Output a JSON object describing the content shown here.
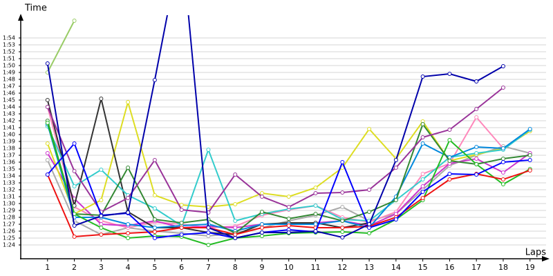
{
  "chart_data": {
    "type": "line",
    "y_label": "Time",
    "x_label": "Laps",
    "grid": true,
    "x": [
      1,
      2,
      3,
      4,
      5,
      6,
      7,
      8,
      9,
      10,
      11,
      12,
      13,
      14,
      15,
      16,
      17,
      18,
      19
    ],
    "xlim": [
      0,
      19.6
    ],
    "xticks": [
      1,
      2,
      3,
      4,
      5,
      6,
      7,
      8,
      9,
      10,
      11,
      12,
      13,
      14,
      15,
      16,
      17,
      18,
      19
    ],
    "ylim": [
      82,
      117
    ],
    "yticks": [
      {
        "value": 84,
        "label": "1:24"
      },
      {
        "value": 85,
        "label": "1:25"
      },
      {
        "value": 86,
        "label": "1:26"
      },
      {
        "value": 87,
        "label": "1:27"
      },
      {
        "value": 88,
        "label": "1:28"
      },
      {
        "value": 89,
        "label": "1:29"
      },
      {
        "value": 90,
        "label": "1:30"
      },
      {
        "value": 91,
        "label": "1:31"
      },
      {
        "value": 92,
        "label": "1:32"
      },
      {
        "value": 93,
        "label": "1:33"
      },
      {
        "value": 94,
        "label": "1:34"
      },
      {
        "value": 95,
        "label": "1:35"
      },
      {
        "value": 96,
        "label": "1:36"
      },
      {
        "value": 97,
        "label": "1:37"
      },
      {
        "value": 98,
        "label": "1:38"
      },
      {
        "value": 99,
        "label": "1:39"
      },
      {
        "value": 100,
        "label": "1:40"
      },
      {
        "value": 101,
        "label": "1:41"
      },
      {
        "value": 102,
        "label": "1:42"
      },
      {
        "value": 103,
        "label": "1:43"
      },
      {
        "value": 104,
        "label": "1:44"
      },
      {
        "value": 105,
        "label": "1:45"
      },
      {
        "value": 106,
        "label": "1:46"
      },
      {
        "value": 107,
        "label": "1:47"
      },
      {
        "value": 108,
        "label": "1:48"
      },
      {
        "value": 109,
        "label": "1:49"
      },
      {
        "value": 110,
        "label": "1:50"
      },
      {
        "value": 111,
        "label": "1:51"
      },
      {
        "value": 112,
        "label": "1:52"
      },
      {
        "value": 113,
        "label": "1:53"
      },
      {
        "value": 114,
        "label": "1:54"
      }
    ],
    "series": [
      {
        "color": "#99cc66",
        "values": [
          109,
          116.5,
          null,
          null,
          null,
          null,
          null,
          null,
          null,
          null,
          null,
          null,
          null,
          null,
          null,
          null,
          null,
          null,
          null
        ]
      },
      {
        "color": "#aaaaaa",
        "values": [
          96.3,
          87.5,
          85.5,
          86.5,
          86,
          85.7,
          85.3,
          85.7,
          86.5,
          87.5,
          88.3,
          89.5,
          87.5,
          88.5,
          92,
          95.5,
          97,
          98.3,
          97.3
        ]
      },
      {
        "color": "#ff88bb",
        "values": [
          104,
          89.5,
          87.5,
          86.5,
          87.3,
          87,
          86.5,
          86.7,
          88.3,
          89.1,
          89.7,
          88,
          87.3,
          88.8,
          94.3,
          95.8,
          102.5,
          98,
          100.5
        ]
      },
      {
        "color": "#cc33cc",
        "values": [
          97.3,
          90.7,
          87,
          86.8,
          87.5,
          86.5,
          86.7,
          86.5,
          87,
          87,
          87.2,
          87.5,
          86.8,
          88.5,
          92.5,
          95.8,
          96.5,
          94.5,
          97.3
        ]
      },
      {
        "color": "#dddd22",
        "values": [
          98.7,
          88.5,
          90.5,
          104.7,
          91.2,
          89.8,
          89.5,
          89.9,
          91.5,
          91,
          92.3,
          95.2,
          100.8,
          96.5,
          101.9,
          96.2,
          97.1,
          98,
          100.5
        ]
      },
      {
        "color": "#333333",
        "values": [
          105,
          89.7,
          105.2,
          88.8,
          86.5,
          86.5,
          85.8,
          85.5,
          87,
          87.2,
          87.2,
          86.5,
          87.2,
          null,
          null,
          null,
          null,
          null,
          null
        ]
      },
      {
        "color": "#33cccc",
        "values": [
          101.2,
          92.5,
          94.9,
          91.2,
          89.3,
          86.8,
          97.8,
          87.5,
          88.5,
          89.2,
          89.7,
          87.7,
          87.5,
          90.5,
          93.5,
          96.7,
          97.3,
          97.8,
          100.7
        ]
      },
      {
        "color": "#0088dd",
        "values": [
          101.5,
          88,
          88,
          87,
          86.5,
          86.8,
          87,
          86,
          87,
          87,
          87,
          87.5,
          86.5,
          91,
          98.7,
          96.7,
          98.2,
          98,
          100.8
        ]
      },
      {
        "color": "#338833",
        "values": [
          102,
          88.5,
          88.3,
          95.2,
          87.7,
          87.2,
          87.7,
          85.7,
          88.8,
          87.8,
          88.5,
          87.5,
          88.8,
          90.5,
          101.5,
          96.2,
          95.7,
          96.5,
          97
        ]
      },
      {
        "color": "#22bb22",
        "values": [
          101.7,
          88.5,
          86.5,
          85,
          85.3,
          85.2,
          84,
          85,
          85.3,
          85.7,
          85.8,
          85.9,
          85.7,
          87.7,
          90.5,
          99.2,
          95.7,
          92.8,
          95
        ]
      },
      {
        "color": "#ee1111",
        "values": [
          94.2,
          85.2,
          85.5,
          85.7,
          85.9,
          86.5,
          86.5,
          85.5,
          86.5,
          86.8,
          86.5,
          86.5,
          86.7,
          88,
          90.8,
          93.5,
          94.3,
          93.5,
          94.8
        ]
      },
      {
        "color": "#993399",
        "values": [
          104,
          94.7,
          88.8,
          90.8,
          96.3,
          89.1,
          88.7,
          94.2,
          91,
          89.5,
          91.5,
          91.6,
          92,
          95.2,
          99.6,
          100.7,
          103.7,
          106.8,
          null
        ]
      },
      {
        "color": "#0000ff",
        "values": [
          94.2,
          98.7,
          88.3,
          88.6,
          85,
          85.5,
          85.8,
          85,
          85.8,
          86.2,
          85.9,
          96,
          86.5,
          87.7,
          91.7,
          94.3,
          94.2,
          96,
          96.3
        ]
      },
      {
        "color": "#0000aa",
        "values": [
          110.3,
          86.8,
          88.2,
          88.7,
          107.9,
          128,
          86.5,
          85,
          85.8,
          85.8,
          86,
          85.1,
          87,
          96.3,
          108.4,
          108.8,
          107.7,
          109.9,
          null
        ]
      }
    ]
  }
}
